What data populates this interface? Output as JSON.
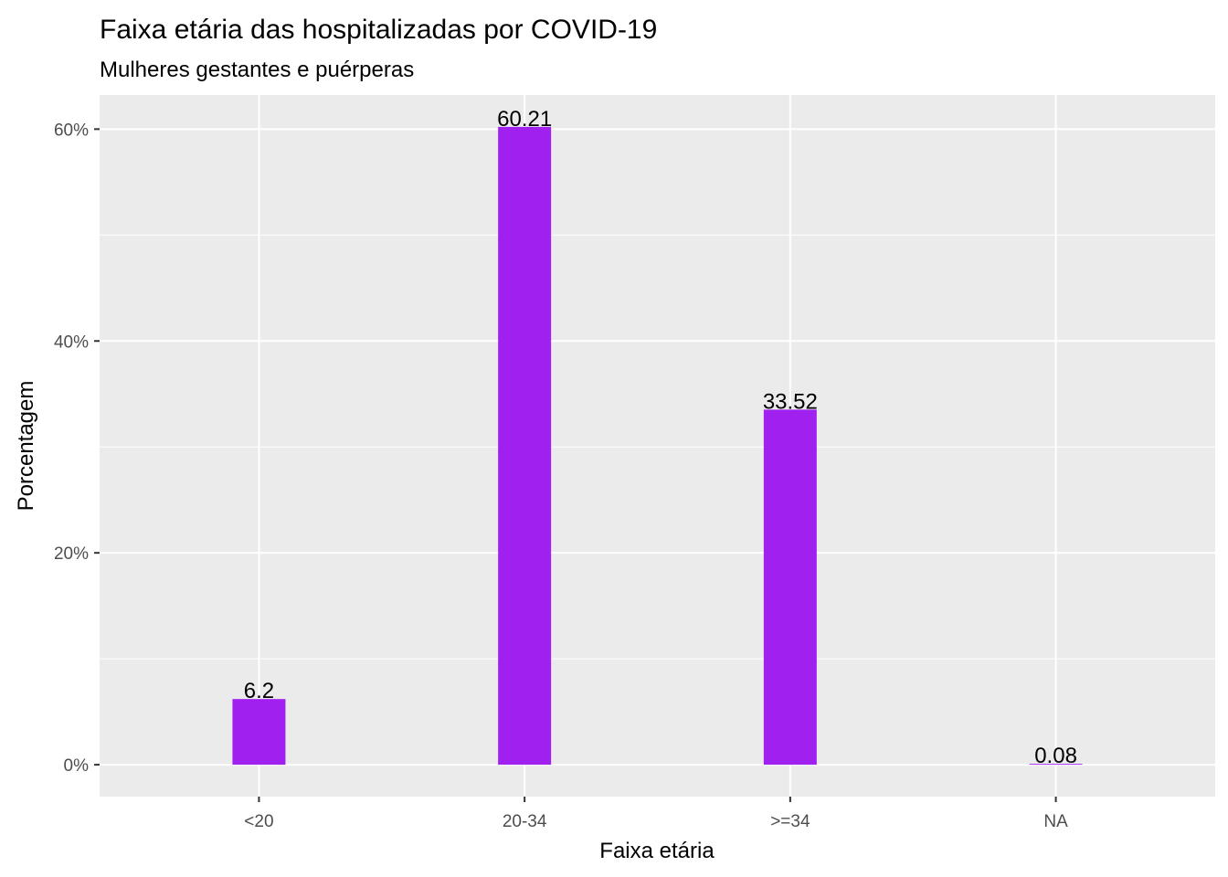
{
  "chart_data": {
    "type": "bar",
    "title": "Faixa etária das hospitalizadas por COVID-19",
    "subtitle": "Mulheres gestantes e puérperas",
    "xlabel": "Faixa etária",
    "ylabel": "Porcentagem",
    "categories": [
      "<20",
      "20-34",
      ">=34",
      "NA"
    ],
    "values": [
      6.2,
      60.21,
      33.52,
      0.08
    ],
    "data_labels": [
      "6.2",
      "60.21",
      "33.52",
      "0.08"
    ],
    "y_ticks": [
      0,
      20,
      40,
      60
    ],
    "y_tick_labels": [
      "0%",
      "20%",
      "40%",
      "60%"
    ],
    "ylim": [
      -3.01,
      63.22
    ],
    "grid": true,
    "legend": "none",
    "colors": {
      "bar": "#A020F0",
      "panel": "#EBEBEB",
      "grid": "#FFFFFF"
    }
  }
}
